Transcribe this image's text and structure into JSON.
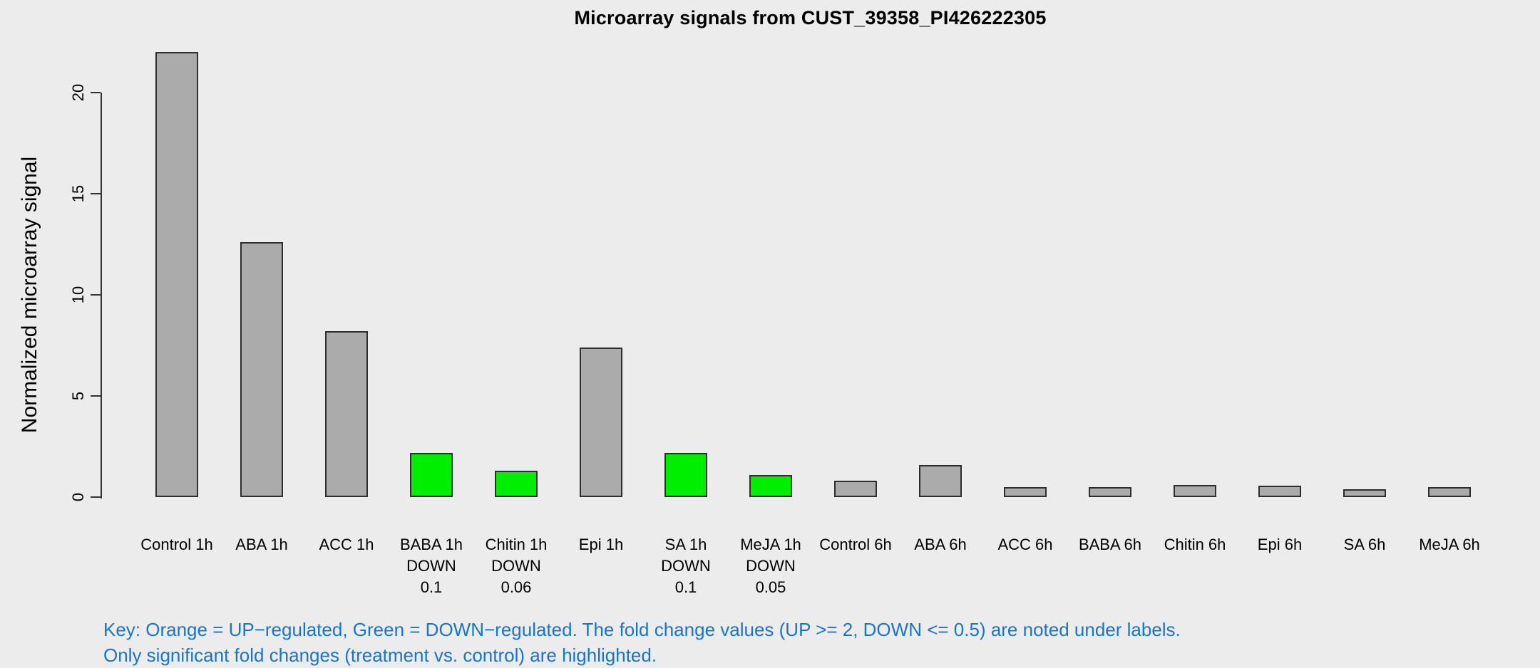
{
  "chart_data": {
    "type": "bar",
    "title": "Microarray signals from CUST_39358_PI426222305",
    "ylabel": "Normalized microarray signal",
    "xlabel": "",
    "ylim": [
      0,
      20
    ],
    "yticks": [
      0,
      5,
      10,
      15,
      20
    ],
    "grid": false,
    "legend_position": "none",
    "categories": [
      "Control 1h",
      "ABA 1h",
      "ACC 1h",
      "BABA 1h",
      "Chitin 1h",
      "Epi 1h",
      "SA 1h",
      "MeJA 1h",
      "Control 6h",
      "ABA 6h",
      "ACC 6h",
      "BABA 6h",
      "Chitin 6h",
      "Epi 6h",
      "SA 6h",
      "MeJA 6h"
    ],
    "values": [
      22,
      12.6,
      8.2,
      2.2,
      1.3,
      7.4,
      2.2,
      1.1,
      0.8,
      1.6,
      0.5,
      0.5,
      0.6,
      0.55,
      0.4,
      0.5
    ],
    "regulation": [
      "",
      "",
      "",
      "DOWN",
      "DOWN",
      "",
      "DOWN",
      "DOWN",
      "",
      "",
      "",
      "",
      "",
      "",
      "",
      ""
    ],
    "fold_change": [
      "",
      "",
      "",
      "0.1",
      "0.06",
      "",
      "0.1",
      "0.05",
      "",
      "",
      "",
      "",
      "",
      "",
      "",
      ""
    ],
    "bar_colors": [
      "gray",
      "gray",
      "gray",
      "green",
      "green",
      "gray",
      "green",
      "green",
      "gray",
      "gray",
      "gray",
      "gray",
      "gray",
      "gray",
      "gray",
      "gray"
    ]
  },
  "key": {
    "line1": "Key: Orange = UP−regulated, Green = DOWN−regulated. The fold change values (UP >= 2, DOWN <= 0.5) are noted under labels.",
    "line2": "Only significant fold changes (treatment vs. control) are highlighted."
  },
  "colors": {
    "background": "#ECECEC",
    "bar_gray": "#ABABAB",
    "bar_green": "#00EE00",
    "bar_border": "#2E2E2E",
    "axis": "#333333",
    "key_text": "#1874CD",
    "text": "#000000"
  }
}
